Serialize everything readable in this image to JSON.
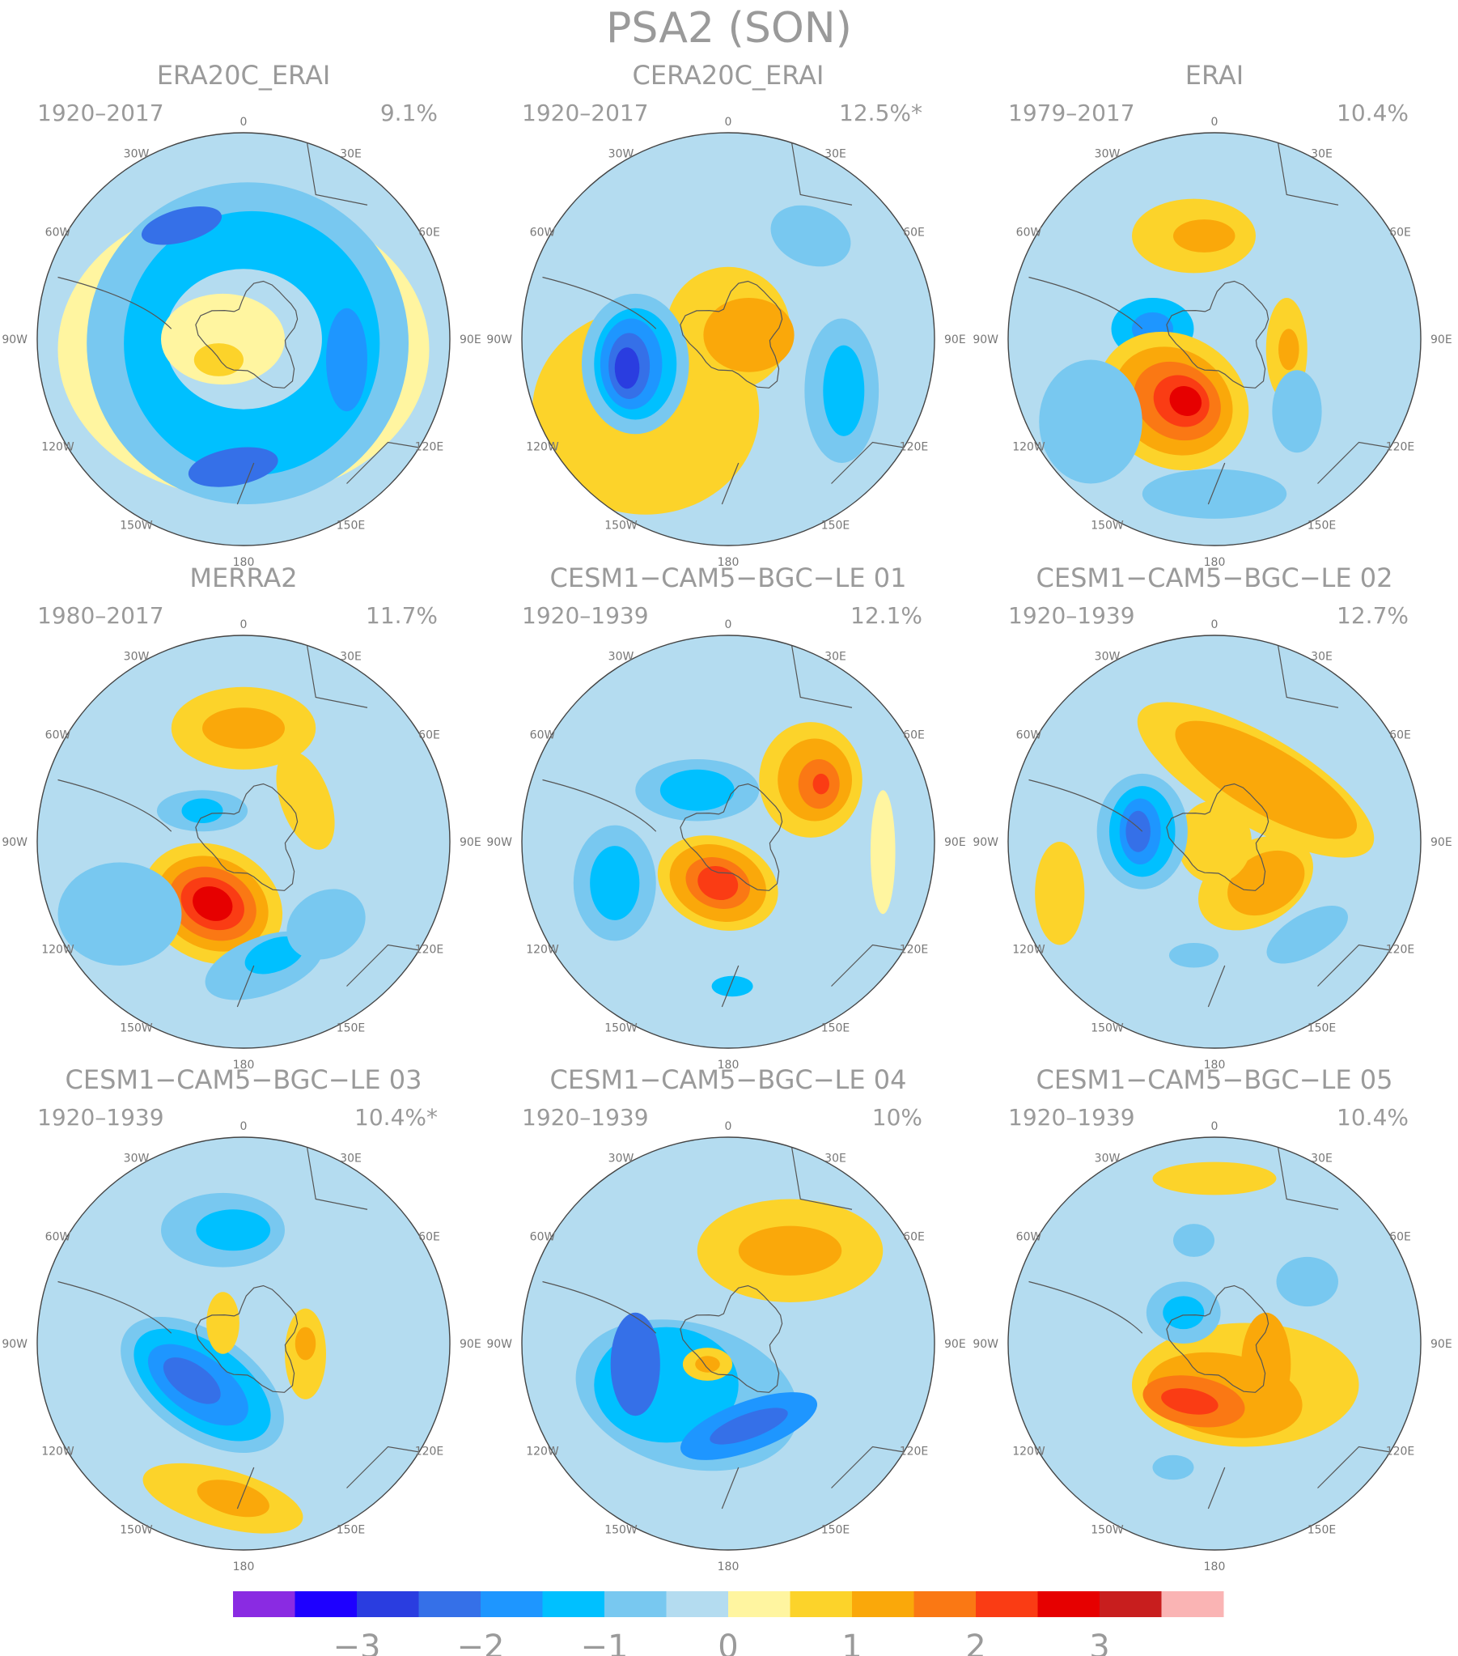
{
  "title": "PSA2 (SON)",
  "lon_labels": [
    "0",
    "30E",
    "60E",
    "90E",
    "120E",
    "150E",
    "180",
    "150W",
    "120W",
    "90W",
    "60W",
    "30W"
  ],
  "panels": [
    {
      "name": "ERA20C_ERAI",
      "period": "1920–2017",
      "variance": "9.1%"
    },
    {
      "name": "CERA20C_ERAI",
      "period": "1920–2017",
      "variance": "12.5%*"
    },
    {
      "name": "ERAI",
      "period": "1979–2017",
      "variance": "10.4%"
    },
    {
      "name": "MERRA2",
      "period": "1980–2017",
      "variance": "11.7%"
    },
    {
      "name": "CESM1−CAM5−BGC−LE 01",
      "period": "1920–1939",
      "variance": "12.1%"
    },
    {
      "name": "CESM1−CAM5−BGC−LE 02",
      "period": "1920–1939",
      "variance": "12.7%"
    },
    {
      "name": "CESM1−CAM5−BGC−LE 03",
      "period": "1920–1939",
      "variance": "10.4%*"
    },
    {
      "name": "CESM1−CAM5−BGC−LE 04",
      "period": "1920–1939",
      "variance": "10%"
    },
    {
      "name": "CESM1−CAM5−BGC−LE 05",
      "period": "1920–1939",
      "variance": "10.4%"
    }
  ],
  "colorbar": {
    "colors": [
      "#8a2be2",
      "#1e00ff",
      "#2a3de0",
      "#3570e8",
      "#1e96ff",
      "#00c0ff",
      "#78c8f0",
      "#b4dcf0",
      "#fff5a0",
      "#fcd32a",
      "#faa80a",
      "#fa7814",
      "#fa3c14",
      "#e60000",
      "#c81e1e",
      "#fab4b4"
    ],
    "tick_labels": [
      "−3",
      "−2",
      "−1",
      "0",
      "1",
      "2",
      "3"
    ],
    "tick_values": [
      -3,
      -2,
      -1,
      0,
      1,
      2,
      3
    ]
  },
  "colors": {
    "land_outline": "#555555",
    "text": "#9a9a9a"
  }
}
